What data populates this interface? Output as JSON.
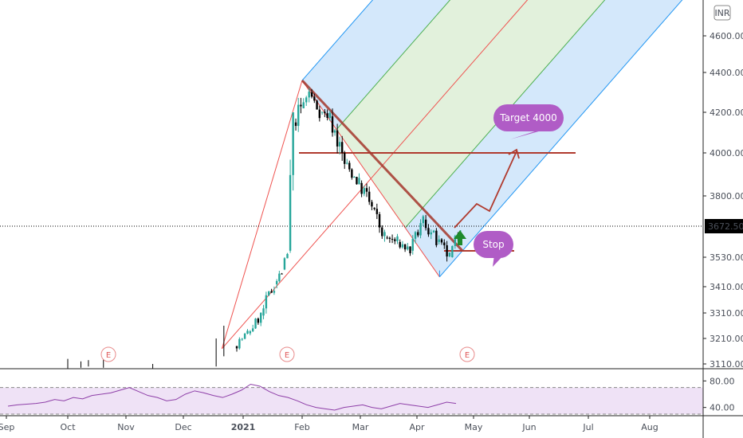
{
  "chart_data": {
    "type": "candlestick",
    "currency": "INR",
    "last_price": "3672.50",
    "price_axis": {
      "ticks": [
        "4600.00",
        "4400.00",
        "4200.00",
        "4000.00",
        "3800.00",
        "3530.00",
        "3410.00",
        "3310.00",
        "3210.00",
        "3110.00"
      ],
      "ylim": [
        3100,
        4700
      ]
    },
    "time_axis": {
      "ticks": [
        "Sep",
        "Oct",
        "Nov",
        "Dec",
        "2021",
        "Feb",
        "Mar",
        "Apr",
        "May",
        "Jun",
        "Jul",
        "Aug"
      ]
    },
    "series": [
      {
        "kind": "ohlc",
        "points": [
          {
            "x": "2020-12-28",
            "o": 3180,
            "h": 3260,
            "l": 3150,
            "c": 3230
          },
          {
            "x": "2021-01-04",
            "o": 3230,
            "h": 3320,
            "l": 3200,
            "c": 3300
          },
          {
            "x": "2021-01-11",
            "o": 3300,
            "h": 3450,
            "l": 3270,
            "c": 3420
          },
          {
            "x": "2021-01-18",
            "o": 3420,
            "h": 3520,
            "l": 3380,
            "c": 3470
          },
          {
            "x": "2021-01-22",
            "o": 3480,
            "h": 3560,
            "l": 3450,
            "c": 3540
          },
          {
            "x": "2021-01-25",
            "o": 3560,
            "h": 4200,
            "l": 3550,
            "c": 4150
          },
          {
            "x": "2021-01-28",
            "o": 4150,
            "h": 4280,
            "l": 3980,
            "c": 4220
          },
          {
            "x": "2021-02-01",
            "o": 4220,
            "h": 4360,
            "l": 4150,
            "c": 4300
          },
          {
            "x": "2021-02-05",
            "o": 4300,
            "h": 4320,
            "l": 4150,
            "c": 4200
          },
          {
            "x": "2021-02-10",
            "o": 4200,
            "h": 4260,
            "l": 4100,
            "c": 4180
          },
          {
            "x": "2021-02-15",
            "o": 4180,
            "h": 4230,
            "l": 3900,
            "c": 3950
          },
          {
            "x": "2021-02-22",
            "o": 3950,
            "h": 4000,
            "l": 3820,
            "c": 3860
          },
          {
            "x": "2021-03-01",
            "o": 3860,
            "h": 3950,
            "l": 3700,
            "c": 3750
          },
          {
            "x": "2021-03-08",
            "o": 3750,
            "h": 3800,
            "l": 3580,
            "c": 3620
          },
          {
            "x": "2021-03-15",
            "o": 3620,
            "h": 3700,
            "l": 3530,
            "c": 3600
          },
          {
            "x": "2021-03-22",
            "o": 3600,
            "h": 3650,
            "l": 3510,
            "c": 3560
          },
          {
            "x": "2021-03-29",
            "o": 3560,
            "h": 3720,
            "l": 3540,
            "c": 3700
          },
          {
            "x": "2021-04-05",
            "o": 3700,
            "h": 3760,
            "l": 3560,
            "c": 3600
          },
          {
            "x": "2021-04-12",
            "o": 3600,
            "h": 3640,
            "l": 3460,
            "c": 3530
          },
          {
            "x": "2021-04-19",
            "o": 3530,
            "h": 3690,
            "l": 3510,
            "c": 3672.5
          }
        ]
      },
      {
        "kind": "rsi",
        "axis_ticks": [
          "80.00",
          "40.00"
        ],
        "ylim": [
          30,
          90
        ],
        "points": [
          42,
          44,
          45,
          46,
          48,
          52,
          50,
          55,
          53,
          58,
          60,
          62,
          66,
          70,
          64,
          58,
          55,
          50,
          52,
          60,
          65,
          62,
          58,
          55,
          60,
          66,
          75,
          72,
          64,
          58,
          55,
          50,
          44,
          40,
          38,
          36,
          40,
          42,
          44,
          40,
          38,
          42,
          46,
          44,
          42,
          40,
          44,
          48,
          46
        ]
      }
    ],
    "pitchfork": {
      "pivot_a": {
        "x": "2020-12-21",
        "y": 3170
      },
      "pivot_b": {
        "x": "2021-02-01",
        "y": 4360
      },
      "pivot_c": {
        "x": "2021-04-13",
        "y": 3450
      }
    },
    "annotations": {
      "target_label": "Target 4000",
      "stop_label": "Stop",
      "earnings_marker": "E"
    },
    "colors": {
      "up": "#26a69a",
      "down": "#000000",
      "price_line": "#000000",
      "bubble": "#b05cc6",
      "trend": "#b03a2e",
      "pitch_outer": "#2196f3",
      "pitch_inner": "#4caf50",
      "median": "#ef5350",
      "rsi": "#8e3fa8"
    }
  }
}
